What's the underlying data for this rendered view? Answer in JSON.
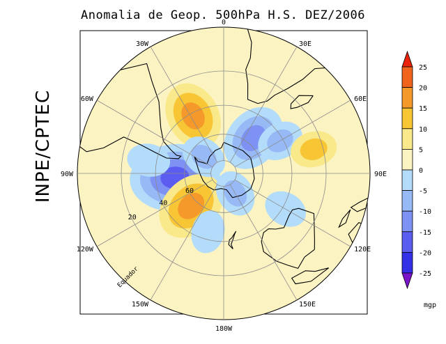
{
  "title": "Anomalia de Geop. 500hPa H.S. DEZ/2006",
  "credit": "INPE/CPTEC",
  "map": {
    "projection": "polar stereographic, south pole",
    "longitude_labels": [
      {
        "text": "90W",
        "lon": -90
      },
      {
        "text": "120W",
        "lon": -120
      },
      {
        "text": "60W",
        "lon": -60
      },
      {
        "text": "150W",
        "lon": -150
      },
      {
        "text": "30W",
        "lon": -30
      },
      {
        "text": "180W",
        "lon": 180
      },
      {
        "text": "0",
        "lon": 0
      },
      {
        "text": "150E",
        "lon": 150
      },
      {
        "text": "30E",
        "lon": 30
      },
      {
        "text": "120E",
        "lon": 120
      },
      {
        "text": "60E",
        "lon": 60
      },
      {
        "text": "90E",
        "lon": 90
      }
    ],
    "latitude_labels": [
      "20",
      "40",
      "60"
    ],
    "equator_label": "Equador",
    "anomaly_centers": [
      {
        "lat": -53,
        "lon": -95,
        "value": -18
      },
      {
        "lat": -35,
        "lon": -80,
        "value": -5
      },
      {
        "lat": -55,
        "lon": -135,
        "value": 13
      },
      {
        "lat": -45,
        "lon": -165,
        "value": -5
      },
      {
        "lat": -42,
        "lon": -28,
        "value": 12
      },
      {
        "lat": -55,
        "lon": 40,
        "value": -12
      },
      {
        "lat": -42,
        "lon": 60,
        "value": -6
      },
      {
        "lat": -72,
        "lon": 150,
        "value": -6
      },
      {
        "lat": -38,
        "lon": 120,
        "value": -5
      },
      {
        "lat": -25,
        "lon": 75,
        "value": 6
      },
      {
        "lat": -70,
        "lon": -50,
        "value": -6
      }
    ]
  },
  "colorbar": {
    "unit": "mgp",
    "levels": [
      "25",
      "20",
      "15",
      "10",
      "5",
      "0",
      "-5",
      "-10",
      "-15",
      "-20",
      "-25"
    ],
    "colors": [
      "#e8230a",
      "#f0641e",
      "#f59a2a",
      "#f8c535",
      "#f9e98a",
      "#fcf3c3",
      "#b3dcfa",
      "#97b9f5",
      "#7d92f2",
      "#5b5cf0",
      "#3330e8",
      "#7a14c8"
    ]
  }
}
